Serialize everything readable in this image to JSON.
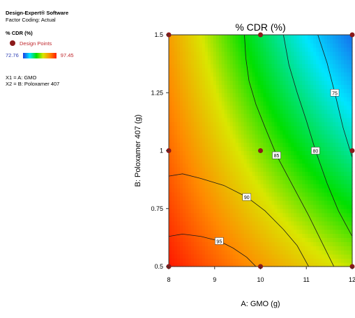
{
  "legend": {
    "software": "Design-Expert® Software",
    "factor_coding": "Factor Coding: Actual",
    "response": "% CDR (%)",
    "design_points_label": "Design Points",
    "scale_low": "72.76",
    "scale_high": "97.45",
    "x1": "X1 = A: GMO",
    "x2": "X2 = B: Poloxamer 407"
  },
  "chart_data": {
    "type": "contour",
    "title": "% CDR (%)",
    "xlabel": "A: GMO (g)",
    "ylabel": "B: Poloxamer 407 (g)",
    "xlim": [
      8,
      12
    ],
    "ylim": [
      0.5,
      1.5
    ],
    "x_ticks": [
      "8",
      "9",
      "10",
      "11",
      "12"
    ],
    "y_ticks": [
      "0.5",
      "0.75",
      "1",
      "1.25",
      "1.5"
    ],
    "response_range": [
      72.76,
      97.45
    ],
    "contour_levels": [
      {
        "label": "75",
        "points": [
          [
            11.25,
            1.5
          ],
          [
            11.45,
            1.38
          ],
          [
            11.62,
            1.25
          ],
          [
            11.8,
            1.1
          ],
          [
            12,
            0.97
          ]
        ]
      },
      {
        "label": "80",
        "points": [
          [
            10.5,
            1.5
          ],
          [
            10.62,
            1.37
          ],
          [
            10.8,
            1.25
          ],
          [
            11.0,
            1.13
          ],
          [
            11.2,
            1.0
          ],
          [
            11.45,
            0.86
          ],
          [
            11.7,
            0.74
          ],
          [
            12,
            0.63
          ]
        ]
      },
      {
        "label": "85",
        "points": [
          [
            9.65,
            1.5
          ],
          [
            9.68,
            1.4
          ],
          [
            9.75,
            1.3
          ],
          [
            9.9,
            1.2
          ],
          [
            10.1,
            1.1
          ],
          [
            10.35,
            0.98
          ],
          [
            10.7,
            0.85
          ],
          [
            11.05,
            0.72
          ],
          [
            11.35,
            0.6
          ],
          [
            11.6,
            0.5
          ]
        ]
      },
      {
        "label": "90",
        "points": [
          [
            8,
            0.89
          ],
          [
            8.3,
            0.9
          ],
          [
            8.7,
            0.88
          ],
          [
            9.2,
            0.85
          ],
          [
            9.7,
            0.8
          ],
          [
            10.1,
            0.74
          ],
          [
            10.5,
            0.66
          ],
          [
            10.8,
            0.59
          ],
          [
            11.05,
            0.5
          ]
        ]
      },
      {
        "label": "95",
        "points": [
          [
            8,
            0.63
          ],
          [
            8.3,
            0.64
          ],
          [
            8.7,
            0.63
          ],
          [
            9.1,
            0.61
          ],
          [
            9.4,
            0.58
          ],
          [
            9.7,
            0.54
          ],
          [
            9.9,
            0.5
          ]
        ]
      }
    ],
    "design_points": [
      [
        8,
        1.5
      ],
      [
        10,
        1.5
      ],
      [
        12,
        1.5
      ],
      [
        8,
        1
      ],
      [
        10,
        1
      ],
      [
        12,
        1
      ],
      [
        8,
        0.5
      ],
      [
        10,
        0.5
      ],
      [
        12,
        0.5
      ]
    ],
    "colors": {
      "low": "#1f3de5",
      "high": "#ff1a00",
      "design_point": "#8b1a1a"
    }
  }
}
